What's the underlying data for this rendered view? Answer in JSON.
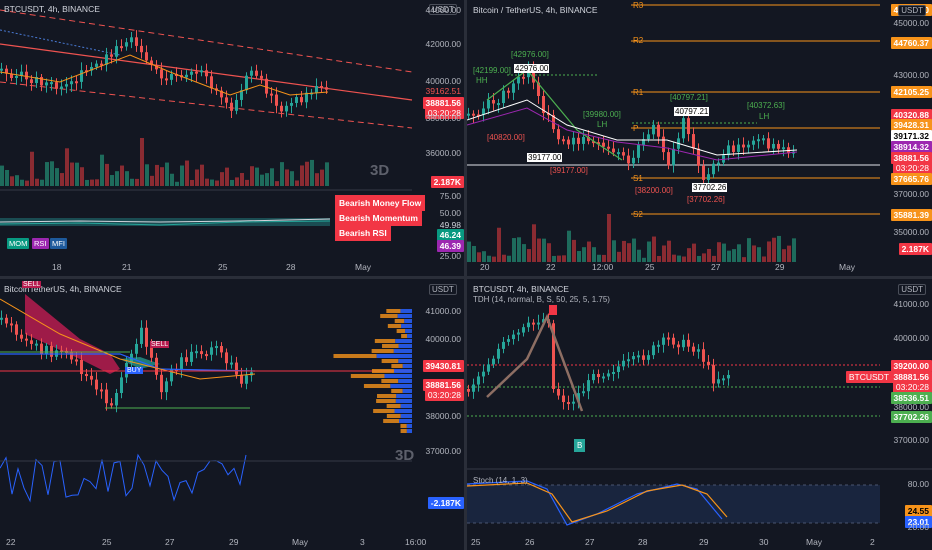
{
  "colors": {
    "bg": "#131722",
    "up": "#26a69a",
    "down": "#ef5350",
    "orange": "#f7931a",
    "blue": "#2962ff",
    "green": "#4caf50"
  },
  "panel_tl": {
    "title": "BTCUSDT, 4h, BINANCE",
    "currency": "USDT",
    "watermark": "3D",
    "price_ticks": [
      "44000.00",
      "42000.00",
      "40000.00",
      "38000.00",
      "36000.00"
    ],
    "tags": {
      "p1": "39162.51",
      "p2": "38881.56",
      "p2_time": "03:20:28",
      "vol": "2.187K",
      "v75": "75.00",
      "v50": "50.00",
      "v4998": "49.98",
      "v4624": "46.24",
      "v4639": "46.39",
      "v25": "25.00"
    },
    "alerts": [
      "Bearish Money Flow",
      "Bearish Momentum",
      "Bearish RSI"
    ],
    "chips": [
      "MOM",
      "RSI",
      "MFI"
    ],
    "time_ticks": [
      "18",
      "21",
      "25",
      "28",
      "May"
    ]
  },
  "panel_tr": {
    "title": "Bitcoin / TetherUS, 4h, BINANCE",
    "currency": "USDT",
    "price_ticks": [
      "45000.00",
      "43000.00",
      "37000.00",
      "35000.00"
    ],
    "levels": [
      "R3",
      "R2",
      "R1",
      "P",
      "S1",
      "S2"
    ],
    "labels": [
      "[42976.00]",
      "42976.00",
      "[42199.00]",
      "HH",
      "[40820.00]",
      "[39980.00]",
      "LH",
      "39177.00",
      "[39177.00]",
      "[40797.21]",
      "40797.21",
      "[40372.63]",
      "LH",
      "[38200.00]",
      "37702.26",
      "[37702.26]"
    ],
    "tags": {
      "t1": "46253.00",
      "t2": "44760.37",
      "t3": "42105.25",
      "t4": "40320.88",
      "t5": "39428.31",
      "t6": "39171.32",
      "t7": "38914.32",
      "t8": "38881.56",
      "t8_time": "03:20:28",
      "t9": "37665.76",
      "t10": "35881.39",
      "t11": "2.187K"
    },
    "time_ticks": [
      "20",
      "22",
      "12:00",
      "25",
      "27",
      "29",
      "May"
    ]
  },
  "panel_bl": {
    "title": "BitcoinTetherUS, 4h, BINANCE",
    "currency": "USDT",
    "watermark": "3D",
    "price_ticks": [
      "41000.00",
      "40000.00",
      "38000.00",
      "37000.00"
    ],
    "tags": {
      "p1": "39430.81",
      "p2": "38881.56",
      "p2_time": "03:20:28",
      "vol": "-2.187K"
    },
    "signals": [
      "SELL",
      "SELL",
      "BUY"
    ],
    "time_ticks": [
      "22",
      "25",
      "27",
      "29",
      "May",
      "3",
      "16:00"
    ]
  },
  "panel_br": {
    "title": "BTCUSDT, 4h, BINANCE",
    "subtitle": "TDH (14, normal, B, S, 50, 25, 5, 1.75)",
    "currency": "USDT",
    "price_ticks": [
      "41000.00",
      "40000.00",
      "38000.00",
      "37000.00"
    ],
    "tags": {
      "t1": "39200.00",
      "t2": "38881.56",
      "t2_time": "03:20:28",
      "t3": "38536.51",
      "t4": "37702.26",
      "sym": "BTCUSDT"
    },
    "stoch_title": "Stoch (14, 1, 3)",
    "stoch_ticks": [
      "80.00",
      "20.00"
    ],
    "stoch_tags": {
      "a": "24.55",
      "b": "23.01"
    },
    "signal_b": "B",
    "time_ticks": [
      "25",
      "26",
      "27",
      "28",
      "29",
      "30",
      "May",
      "2"
    ]
  }
}
